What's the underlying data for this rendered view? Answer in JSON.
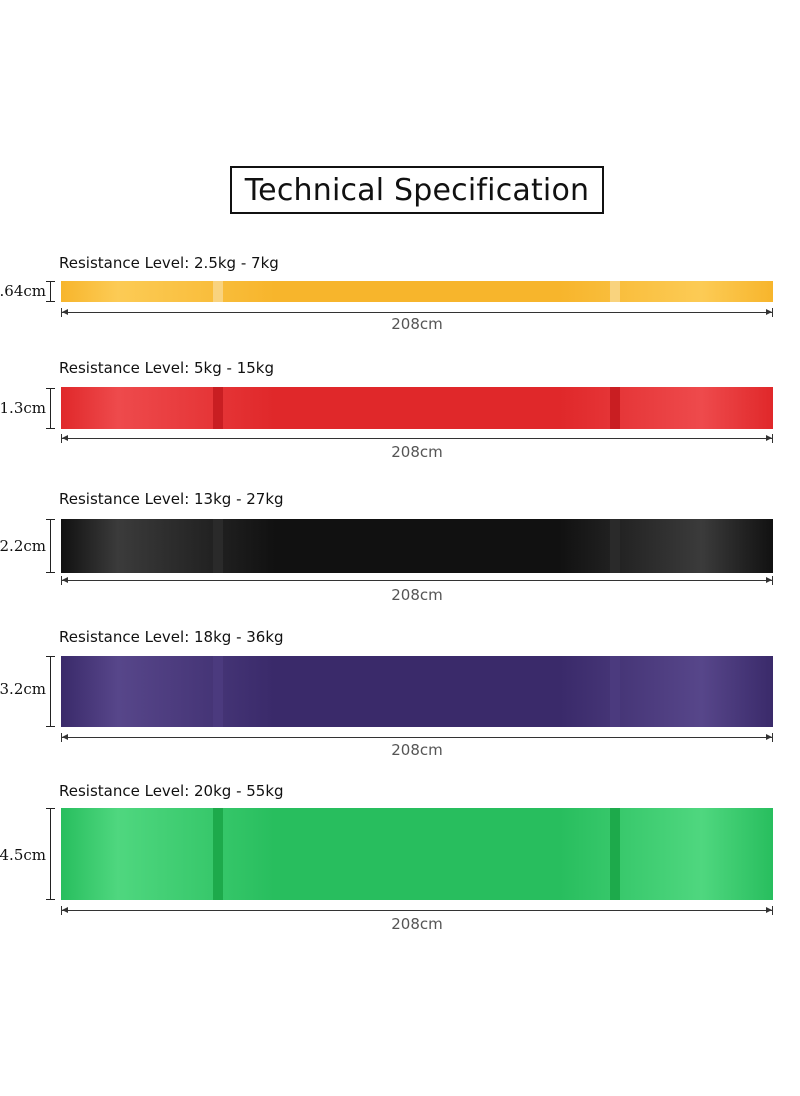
{
  "title": "Technical Specification",
  "bands": [
    {
      "resistance_label": "Resistance Level: 2.5kg - 7kg",
      "width_label": ".64cm",
      "length_label": "208cm",
      "color": "#F7B52C",
      "color_light": "#FCCB55",
      "clip_color": "#F9D37E"
    },
    {
      "resistance_label": "Resistance Level: 5kg - 15kg",
      "width_label": "1.3cm",
      "length_label": "208cm",
      "color": "#E0282A",
      "color_light": "#EE4A4C",
      "clip_color": "#C91E22"
    },
    {
      "resistance_label": "Resistance Level: 13kg - 27kg",
      "width_label": "2.2cm",
      "length_label": "208cm",
      "color": "#111111",
      "color_light": "#3B3B3B",
      "clip_color": "#2A2A2A"
    },
    {
      "resistance_label": "Resistance Level: 18kg - 36kg",
      "width_label": "3.2cm",
      "length_label": "208cm",
      "color": "#3A2A6A",
      "color_light": "#57468A",
      "clip_color": "#4B3A7E"
    },
    {
      "resistance_label": "Resistance Level: 20kg - 55kg",
      "width_label": "4.5cm",
      "length_label": "208cm",
      "color": "#28BE5E",
      "color_light": "#4FD77F",
      "clip_color": "#1DAA4B"
    }
  ]
}
